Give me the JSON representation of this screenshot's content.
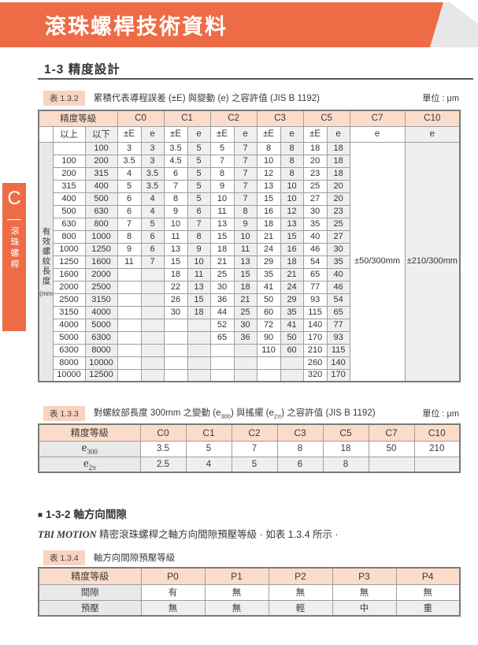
{
  "colors": {
    "accent_orange": "#ed6c45",
    "banner_gray": "#e7e7e9",
    "table_header_pink": "#fbdcca",
    "caption_tag_pink": "#f9d3bf",
    "cell_gray": "#efefef",
    "label_gray": "#e9e9e9"
  },
  "banner": {
    "title": "滾珠螺桿技術資料"
  },
  "sidebar": {
    "letter": "C",
    "label": "滾珠螺桿"
  },
  "section": {
    "heading": "1-3 精度設計"
  },
  "table1": {
    "tag": "表 1.3.2",
    "caption": "累積代表導程誤差 (±E) 與變動 (e) 之容許值 (JIS B 1192)",
    "unit": "單位 : μm",
    "header": {
      "grade": "精度等級",
      "grades": [
        "C0",
        "C1",
        "C2",
        "C3",
        "C5",
        "C7",
        "C10"
      ],
      "above": "以上",
      "below": "以下",
      "pe": "±E",
      "e": "e"
    },
    "side_label": "有效螺紋長度",
    "side_unit": "(mm)",
    "c7_value": "±50/300mm",
    "c10_value": "±210/300mm",
    "rows": [
      {
        "above": "",
        "below": "100",
        "vals": [
          "3",
          "3",
          "3.5",
          "5",
          "5",
          "7",
          "8",
          "8",
          "18",
          "18"
        ]
      },
      {
        "above": "100",
        "below": "200",
        "vals": [
          "3.5",
          "3",
          "4.5",
          "5",
          "7",
          "7",
          "10",
          "8",
          "20",
          "18"
        ]
      },
      {
        "above": "200",
        "below": "315",
        "vals": [
          "4",
          "3.5",
          "6",
          "5",
          "8",
          "7",
          "12",
          "8",
          "23",
          "18"
        ]
      },
      {
        "above": "315",
        "below": "400",
        "vals": [
          "5",
          "3.5",
          "7",
          "5",
          "9",
          "7",
          "13",
          "10",
          "25",
          "20"
        ]
      },
      {
        "above": "400",
        "below": "500",
        "vals": [
          "6",
          "4",
          "8",
          "5",
          "10",
          "7",
          "15",
          "10",
          "27",
          "20"
        ]
      },
      {
        "above": "500",
        "below": "630",
        "vals": [
          "6",
          "4",
          "9",
          "6",
          "11",
          "8",
          "16",
          "12",
          "30",
          "23"
        ]
      },
      {
        "above": "630",
        "below": "800",
        "vals": [
          "7",
          "5",
          "10",
          "7",
          "13",
          "9",
          "18",
          "13",
          "35",
          "25"
        ]
      },
      {
        "above": "800",
        "below": "1000",
        "vals": [
          "8",
          "6",
          "11",
          "8",
          "15",
          "10",
          "21",
          "15",
          "40",
          "27"
        ]
      },
      {
        "above": "1000",
        "below": "1250",
        "vals": [
          "9",
          "6",
          "13",
          "9",
          "18",
          "11",
          "24",
          "16",
          "46",
          "30"
        ]
      },
      {
        "above": "1250",
        "below": "1600",
        "vals": [
          "11",
          "7",
          "15",
          "10",
          "21",
          "13",
          "29",
          "18",
          "54",
          "35"
        ]
      },
      {
        "above": "1600",
        "below": "2000",
        "vals": [
          "",
          "",
          "18",
          "11",
          "25",
          "15",
          "35",
          "21",
          "65",
          "40"
        ]
      },
      {
        "above": "2000",
        "below": "2500",
        "vals": [
          "",
          "",
          "22",
          "13",
          "30",
          "18",
          "41",
          "24",
          "77",
          "46"
        ]
      },
      {
        "above": "2500",
        "below": "3150",
        "vals": [
          "",
          "",
          "26",
          "15",
          "36",
          "21",
          "50",
          "29",
          "93",
          "54"
        ]
      },
      {
        "above": "3150",
        "below": "4000",
        "vals": [
          "",
          "",
          "30",
          "18",
          "44",
          "25",
          "60",
          "35",
          "115",
          "65"
        ]
      },
      {
        "above": "4000",
        "below": "5000",
        "vals": [
          "",
          "",
          "",
          "",
          "52",
          "30",
          "72",
          "41",
          "140",
          "77"
        ]
      },
      {
        "above": "5000",
        "below": "6300",
        "vals": [
          "",
          "",
          "",
          "",
          "65",
          "36",
          "90",
          "50",
          "170",
          "93"
        ]
      },
      {
        "above": "6300",
        "below": "8000",
        "vals": [
          "",
          "",
          "",
          "",
          "",
          "",
          "110",
          "60",
          "210",
          "115"
        ]
      },
      {
        "above": "8000",
        "below": "10000",
        "vals": [
          "",
          "",
          "",
          "",
          "",
          "",
          "",
          "",
          "260",
          "140"
        ]
      },
      {
        "above": "10000",
        "below": "12500",
        "vals": [
          "",
          "",
          "",
          "",
          "",
          "",
          "",
          "",
          "320",
          "170"
        ]
      }
    ]
  },
  "table2": {
    "tag": "表 1.3.3",
    "caption_parts": [
      "對螺紋部長度 300mm 之變動 (e",
      "300",
      ") 與搖擺 (e",
      "2π",
      ") 之容許值 (JIS B 1192)"
    ],
    "unit": "單位 : μm",
    "grade": "精度等級",
    "grades": [
      "C0",
      "C1",
      "C2",
      "C3",
      "C5",
      "C7",
      "C10"
    ],
    "rows": [
      {
        "base": "e",
        "sub": "300",
        "vals": [
          "3.5",
          "5",
          "7",
          "8",
          "18",
          "50",
          "210"
        ]
      },
      {
        "base": "e",
        "sub": "2π",
        "vals": [
          "2.5",
          "4",
          "5",
          "6",
          "8",
          "",
          ""
        ]
      }
    ]
  },
  "section2": {
    "marker": "■",
    "heading": "1-3-2 軸方向間隙",
    "brand": "TBI MOTION",
    "text": " 精密滾珠螺桿之軸方向間隙預壓等級 · 如表 1.3.4 所示 ·"
  },
  "table3": {
    "tag": "表 1.3.4",
    "caption": "軸方向間隙預壓等級",
    "grade": "精度等級",
    "grades": [
      "P0",
      "P1",
      "P2",
      "P3",
      "P4"
    ],
    "rows": [
      {
        "label": "間隙",
        "vals": [
          "有",
          "無",
          "無",
          "無",
          "無"
        ]
      },
      {
        "label": "預壓",
        "vals": [
          "無",
          "無",
          "輕",
          "中",
          "重"
        ]
      }
    ]
  }
}
